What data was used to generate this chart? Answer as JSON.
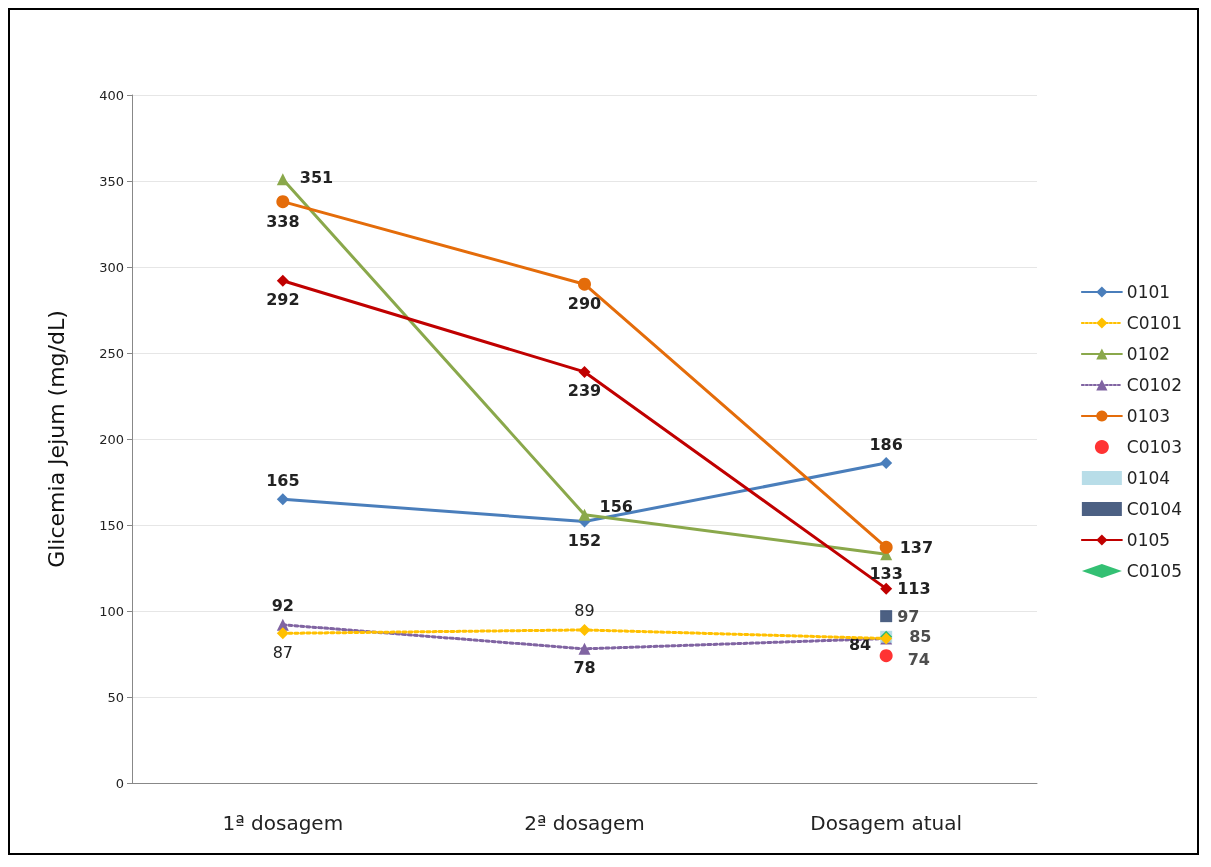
{
  "chart_data": {
    "type": "line",
    "ylabel": "Glicemia Jejum (mg/dL)",
    "categories": [
      "1ª dosagem",
      "2ª dosagem",
      "Dosagem atual"
    ],
    "ylim": [
      0,
      400
    ],
    "yticks": [
      0,
      50,
      100,
      150,
      200,
      250,
      300,
      350,
      400
    ],
    "grid": "y",
    "legend": "right",
    "series": [
      {
        "name": "0101",
        "color": "#4a7ebb",
        "marker": "diamond",
        "line_style": "solid",
        "values": [
          165,
          152,
          186
        ],
        "value_labels": [
          "165",
          "152",
          "186"
        ]
      },
      {
        "name": "C0101",
        "color": "#ffc000",
        "marker": "diamond",
        "line_style": "dotted",
        "values": [
          87,
          89,
          84
        ],
        "value_labels": [
          "87",
          "89",
          null
        ]
      },
      {
        "name": "0102",
        "color": "#8aa84b",
        "marker": "triangle",
        "line_style": "solid",
        "values": [
          351,
          156,
          133
        ],
        "value_labels": [
          "351",
          "156",
          "133"
        ]
      },
      {
        "name": "C0102",
        "color": "#8064a2",
        "marker": "triangle",
        "line_style": "dotted",
        "values": [
          92,
          78,
          84
        ],
        "value_labels": [
          "92",
          "78",
          "84"
        ]
      },
      {
        "name": "0103",
        "color": "#e46c0a",
        "marker": "circle",
        "line_style": "solid",
        "values": [
          338,
          290,
          137
        ],
        "value_labels": [
          "338",
          "290",
          "137"
        ]
      },
      {
        "name": "C0103",
        "type": "scatter",
        "color": "#ff0000",
        "marker": "circle",
        "values": [
          null,
          null,
          74
        ],
        "value_labels": [
          null,
          null,
          "74"
        ]
      },
      {
        "name": "0104",
        "type": "scatter",
        "color": "#a6d5e2",
        "marker": "square",
        "values": [
          null,
          null,
          85
        ],
        "value_labels": [
          null,
          null,
          "85"
        ]
      },
      {
        "name": "C0104",
        "type": "scatter",
        "color": "#1f3864",
        "marker": "square",
        "values": [
          null,
          null,
          97
        ],
        "value_labels": [
          null,
          null,
          "97"
        ]
      },
      {
        "name": "0105",
        "color": "#c00000",
        "marker": "diamond",
        "line_style": "solid",
        "values": [
          292,
          239,
          113
        ],
        "value_labels": [
          "292",
          "239",
          "113"
        ]
      },
      {
        "name": "C0105",
        "type": "scatter",
        "color": "#00b050",
        "marker": "diamond",
        "values": [
          null,
          null,
          85
        ],
        "value_labels": [
          null,
          null,
          null
        ]
      }
    ]
  }
}
